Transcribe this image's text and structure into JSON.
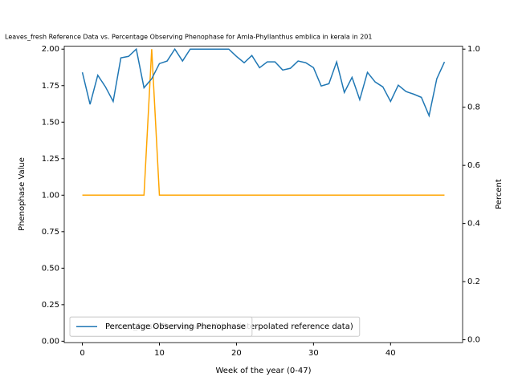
{
  "chart_data": {
    "type": "line",
    "title": "Leaves_fresh Reference Data vs. Percentage Observing Phenophase for Amla-Phyllanthus emblica in kerala in 201",
    "xlabel": "Week of the year (0-47)",
    "ylabel": "Phenophase Value",
    "y2label": "Percent",
    "x": [
      0,
      1,
      2,
      3,
      4,
      5,
      6,
      7,
      8,
      9,
      10,
      11,
      12,
      13,
      14,
      15,
      16,
      17,
      18,
      19,
      20,
      21,
      22,
      23,
      24,
      25,
      26,
      27,
      28,
      29,
      30,
      31,
      32,
      33,
      34,
      35,
      36,
      37,
      38,
      39,
      40,
      41,
      42,
      43,
      44,
      45,
      46,
      47
    ],
    "series": [
      {
        "name": "Leaves_fresh Phenophase Value (interpolated reference data)",
        "color": "#ffa500",
        "axis": "y",
        "values": [
          1,
          1,
          1,
          1,
          1,
          1,
          1,
          1,
          1,
          2,
          1,
          1,
          1,
          1,
          1,
          1,
          1,
          1,
          1,
          1,
          1,
          1,
          1,
          1,
          1,
          1,
          1,
          1,
          1,
          1,
          1,
          1,
          1,
          1,
          1,
          1,
          1,
          1,
          1,
          1,
          1,
          1,
          1,
          1,
          1,
          1,
          1,
          1
        ]
      },
      {
        "name": "Percentage Observing Phenophase",
        "color": "#1f77b4",
        "axis": "y2",
        "values": [
          0.92,
          0.81,
          0.91,
          0.87,
          0.82,
          0.97,
          0.975,
          1.0,
          0.867,
          0.898,
          0.95,
          0.959,
          1.0,
          0.959,
          1.0,
          1.0,
          1.0,
          1.0,
          1.0,
          1.0,
          0.975,
          0.953,
          0.978,
          0.936,
          0.956,
          0.956,
          0.928,
          0.934,
          0.959,
          0.953,
          0.936,
          0.873,
          0.881,
          0.956,
          0.851,
          0.903,
          0.826,
          0.92,
          0.887,
          0.87,
          0.82,
          0.876,
          0.854,
          0.845,
          0.834,
          0.771,
          0.898,
          0.956
        ]
      }
    ],
    "xlim": [
      -2.35,
      49.35
    ],
    "xticks": [
      0,
      10,
      20,
      30,
      40
    ],
    "ylim": [
      -0.01,
      2.02
    ],
    "yticks": [
      {
        "value": 0,
        "label": "0.00"
      },
      {
        "value": 0.25,
        "label": "0.25"
      },
      {
        "value": 0.5,
        "label": "0.50"
      },
      {
        "value": 0.75,
        "label": "0.75"
      },
      {
        "value": 1,
        "label": "1.00"
      },
      {
        "value": 1.25,
        "label": "1.25"
      },
      {
        "value": 1.5,
        "label": "1.50"
      },
      {
        "value": 1.75,
        "label": "1.75"
      },
      {
        "value": 2,
        "label": "2.00"
      }
    ],
    "y2lim": [
      -0.01,
      1.01
    ],
    "y2ticks": [
      {
        "value": 0,
        "label": "0.0"
      },
      {
        "value": 0.2,
        "label": "0.2"
      },
      {
        "value": 0.4,
        "label": "0.4"
      },
      {
        "value": 0.6,
        "label": "0.6"
      },
      {
        "value": 0.8,
        "label": "0.8"
      },
      {
        "value": 1,
        "label": "1.0"
      }
    ],
    "legend": "lower left",
    "grid": false
  }
}
